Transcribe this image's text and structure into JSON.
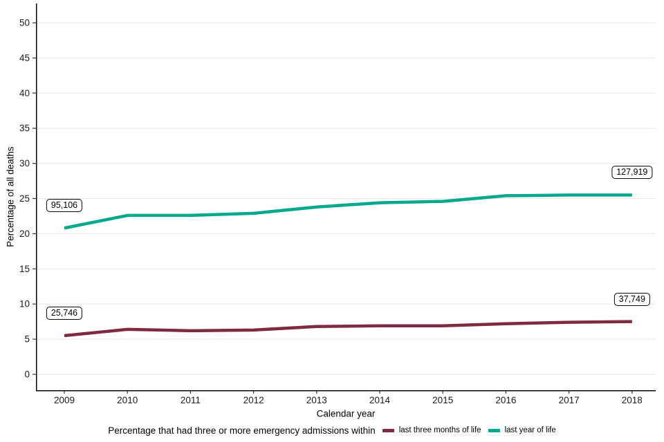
{
  "chart_data": {
    "type": "line",
    "title": "",
    "xlabel": "Calendar year",
    "ylabel": "Percentage of all deaths",
    "x": [
      2009,
      2010,
      2011,
      2012,
      2013,
      2014,
      2015,
      2016,
      2017,
      2018
    ],
    "yticks": [
      0,
      5,
      10,
      15,
      20,
      25,
      30,
      35,
      40,
      45,
      50
    ],
    "ylim": [
      0,
      50
    ],
    "grid": true,
    "legend_position": "bottom",
    "legend_title": "Percentage that had three or more emergency admissions within",
    "series": [
      {
        "name": "last three months of life",
        "color": "#7f2a40",
        "values": [
          5.5,
          6.4,
          6.2,
          6.3,
          6.8,
          6.9,
          6.9,
          7.2,
          7.4,
          7.5
        ]
      },
      {
        "name": "last year of life",
        "color": "#00a98c",
        "values": [
          20.8,
          22.6,
          22.6,
          22.9,
          23.8,
          24.4,
          24.6,
          25.4,
          25.5,
          25.5
        ]
      }
    ],
    "annotations": [
      {
        "label": "95,106",
        "series": "last year of life",
        "position": "start"
      },
      {
        "label": "127,919",
        "series": "last year of life",
        "position": "end"
      },
      {
        "label": "25,746",
        "series": "last three months of life",
        "position": "start"
      },
      {
        "label": "37,749",
        "series": "last three months of life",
        "position": "end"
      }
    ]
  },
  "colors": {
    "background": "#ffffff",
    "grid": "#ede9e0",
    "axis": "#000000",
    "tick": "#333333",
    "tick_text": "#1a1a1a"
  }
}
